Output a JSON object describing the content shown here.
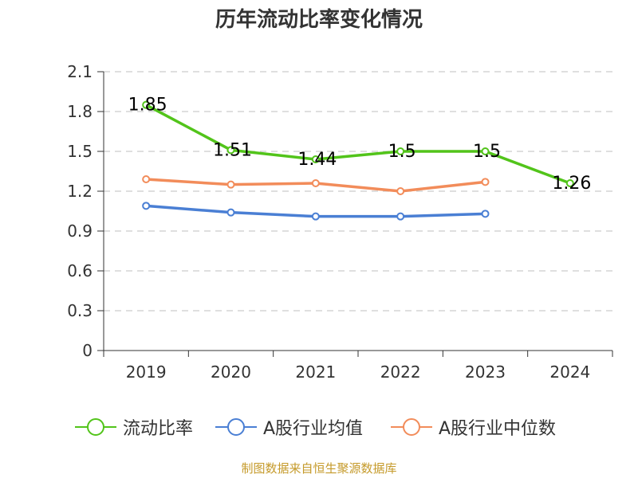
{
  "chart_data": {
    "type": "line",
    "title": "历年流动比率变化情况",
    "categories": [
      "2019",
      "2020",
      "2021",
      "2022",
      "2023",
      "2024"
    ],
    "ylim": [
      0,
      2.1
    ],
    "yticks": [
      "0",
      "0.3",
      "0.6",
      "0.9",
      "1.2",
      "1.5",
      "1.8",
      "2.1"
    ],
    "grid": true,
    "legend_position": "bottom",
    "series": [
      {
        "name": "流动比率",
        "color": "#52c41a",
        "values": [
          1.85,
          1.51,
          1.44,
          1.5,
          1.5,
          1.26
        ],
        "labels": [
          "1.85",
          "1.51",
          "1.44",
          "1.5",
          "1.5",
          "1.26"
        ]
      },
      {
        "name": "A股行业均值",
        "color": "#4a7fd4",
        "values": [
          1.09,
          1.04,
          1.01,
          1.01,
          1.03,
          null
        ]
      },
      {
        "name": "A股行业中位数",
        "color": "#f28c5a",
        "values": [
          1.29,
          1.25,
          1.26,
          1.2,
          1.27,
          null
        ]
      }
    ]
  },
  "footer": "制图数据来自恒生聚源数据库"
}
